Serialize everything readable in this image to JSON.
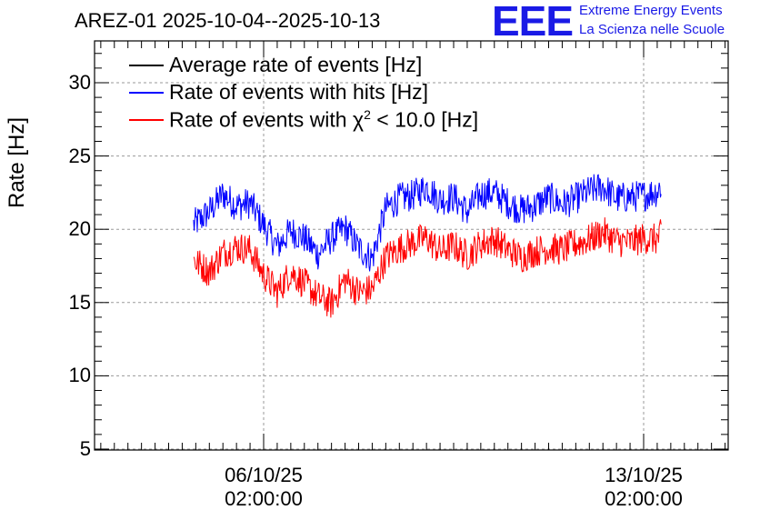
{
  "chart_data": {
    "type": "line",
    "title": "AREZ-01 2025-10-04--2025-10-13",
    "ylabel": "Rate [Hz]",
    "xlabel": "",
    "ylim": [
      4.5,
      32.5
    ],
    "yticks": [
      5,
      10,
      15,
      20,
      25,
      30
    ],
    "xticks": [
      {
        "date": "06/10/25",
        "time": "02:00:00"
      },
      {
        "date": "13/10/25",
        "time": "02:00:00"
      }
    ],
    "grid": true,
    "legend_position": "top-left",
    "series": [
      {
        "name": "Average rate of events [Hz]",
        "color": "#000000",
        "points": []
      },
      {
        "name": "Rate of events with hits [Hz]",
        "color": "#0000ff",
        "points": [
          [
            "04/10/25 19:00",
            20.3
          ],
          [
            "05/10/25 02:00",
            21.2
          ],
          [
            "05/10/25 08:00",
            22.4
          ],
          [
            "05/10/25 14:00",
            21.6
          ],
          [
            "05/10/25 20:00",
            21.8
          ],
          [
            "06/10/25 02:00",
            20.3
          ],
          [
            "06/10/25 08:00",
            18.8
          ],
          [
            "06/10/25 14:00",
            19.9
          ],
          [
            "06/10/25 20:00",
            19.4
          ],
          [
            "07/10/25 02:00",
            18.3
          ],
          [
            "07/10/25 08:00",
            19.4
          ],
          [
            "07/10/25 14:00",
            20.1
          ],
          [
            "07/10/25 20:00",
            18.7
          ],
          [
            "08/10/25 02:00",
            18.0
          ],
          [
            "08/10/25 08:00",
            21.4
          ],
          [
            "08/10/25 14:00",
            22.1
          ],
          [
            "08/10/25 20:00",
            22.3
          ],
          [
            "09/10/25 02:00",
            22.9
          ],
          [
            "09/10/25 08:00",
            22.0
          ],
          [
            "09/10/25 14:00",
            22.2
          ],
          [
            "09/10/25 20:00",
            21.2
          ],
          [
            "10/10/25 02:00",
            22.4
          ],
          [
            "10/10/25 08:00",
            22.5
          ],
          [
            "10/10/25 14:00",
            21.8
          ],
          [
            "10/10/25 20:00",
            21.3
          ],
          [
            "11/10/25 02:00",
            21.6
          ],
          [
            "11/10/25 08:00",
            22.2
          ],
          [
            "11/10/25 14:00",
            21.7
          ],
          [
            "11/10/25 20:00",
            22.1
          ],
          [
            "12/10/25 02:00",
            22.6
          ],
          [
            "12/10/25 08:00",
            22.9
          ],
          [
            "12/10/25 14:00",
            22.1
          ],
          [
            "12/10/25 20:00",
            22.2
          ],
          [
            "13/10/25 02:00",
            22.3
          ],
          [
            "13/10/25 08:00",
            22.6
          ],
          [
            "13/10/25 10:00",
            23.0
          ]
        ]
      },
      {
        "name": "Rate of events with χ² < 10.0 [Hz]",
        "color": "#ff0000",
        "points": [
          [
            "04/10/25 19:00",
            17.9
          ],
          [
            "05/10/25 02:00",
            17.1
          ],
          [
            "05/10/25 08:00",
            18.4
          ],
          [
            "05/10/25 14:00",
            18.8
          ],
          [
            "05/10/25 20:00",
            18.6
          ],
          [
            "06/10/25 02:00",
            16.9
          ],
          [
            "06/10/25 08:00",
            15.7
          ],
          [
            "06/10/25 14:00",
            17.1
          ],
          [
            "06/10/25 20:00",
            16.3
          ],
          [
            "07/10/25 02:00",
            15.4
          ],
          [
            "07/10/25 08:00",
            14.9
          ],
          [
            "07/10/25 14:00",
            16.6
          ],
          [
            "07/10/25 20:00",
            15.7
          ],
          [
            "08/10/25 02:00",
            15.9
          ],
          [
            "08/10/25 08:00",
            18.1
          ],
          [
            "08/10/25 14:00",
            18.7
          ],
          [
            "08/10/25 20:00",
            19.1
          ],
          [
            "09/10/25 02:00",
            19.4
          ],
          [
            "09/10/25 08:00",
            18.5
          ],
          [
            "09/10/25 14:00",
            18.9
          ],
          [
            "09/10/25 20:00",
            18.2
          ],
          [
            "10/10/25 02:00",
            19.0
          ],
          [
            "10/10/25 08:00",
            19.3
          ],
          [
            "10/10/25 14:00",
            18.6
          ],
          [
            "10/10/25 20:00",
            18.1
          ],
          [
            "11/10/25 02:00",
            18.5
          ],
          [
            "11/10/25 08:00",
            18.7
          ],
          [
            "11/10/25 14:00",
            18.6
          ],
          [
            "11/10/25 20:00",
            19.0
          ],
          [
            "12/10/25 02:00",
            19.3
          ],
          [
            "12/10/25 08:00",
            19.8
          ],
          [
            "12/10/25 14:00",
            19.2
          ],
          [
            "12/10/25 20:00",
            19.1
          ],
          [
            "13/10/25 02:00",
            19.4
          ],
          [
            "13/10/25 08:00",
            19.3
          ],
          [
            "13/10/25 10:00",
            19.7
          ]
        ]
      }
    ]
  },
  "legend": {
    "items": [
      {
        "label": "Average rate of events [Hz]",
        "color": "#000000"
      },
      {
        "label": "Rate of events with hits [Hz]",
        "color": "#0000ff"
      },
      {
        "label_prefix": "Rate of events with χ",
        "label_sup": "2",
        "label_suffix": " < 10.0 [Hz]",
        "color": "#ff0000"
      }
    ]
  },
  "logo": {
    "mark": "EEE",
    "line1": "Extreme Energy Events",
    "line2": "La Scienza nelle Scuole",
    "color": "#1a1ae6"
  }
}
